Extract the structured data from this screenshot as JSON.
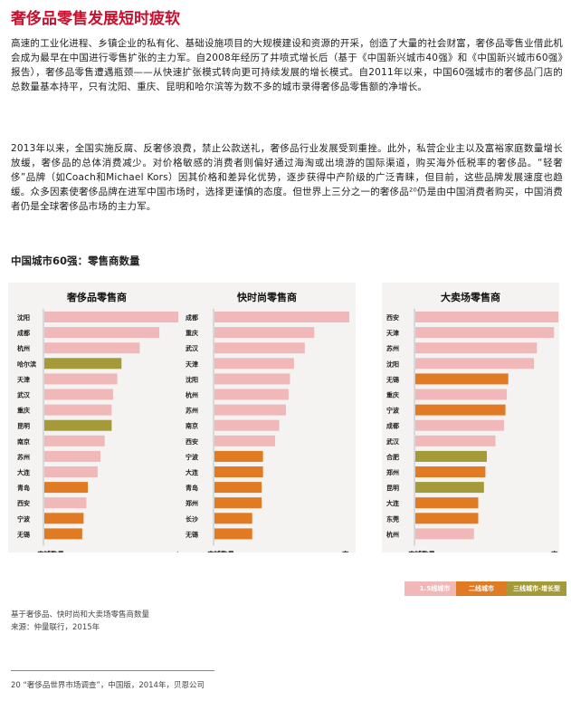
{
  "title": "奢侈品零售发展短时疲软",
  "paragraphs": [
    "高速的工业化进程、乡镇企业的私有化、基础设施项目的大规模建设和资源的开采，创造了大量的社会财富，奢侈品零售业借此机会成为最早在中国进行零售扩张的主力军。自2008年经历了井喷式增长后（基于《中国新兴城市40强》和《中国新兴城市60强》报告），奢侈品零售遭遇瓶颈——从快速扩张模式转向更可持续发展的增长模式。自2011年以来，中国60强城市的奢侈品门店的总数量基本持平，只有沈阳、重庆、昆明和哈尔滨等为数不多的城市录得奢侈品零售额的净增长。",
    "2013年以来，全国实施反腐、反奢侈浪费，禁止公款送礼，奢侈品行业发展受到重挫。此外，私营企业主以及富裕家庭数量增长放缓，奢侈品的总体消费减少。对价格敏感的消费者则偏好通过海淘或出境游的国际渠道，购买海外低税率的奢侈品。“轻奢侈”品牌（如Coach和Michael Kors）因其价格和差异化优势，逐步获得中产阶级的广泛青睐，但目前，这些品牌发展速度也趋缓。众多因素使奢侈品牌在进军中国市场时，选择更谨慎的态度。但世界上三分之一的奢侈品²⁰仍是由中国消费者购买，中国消费者仍是全球奢侈品市场的主力军。"
  ],
  "chart_heading": "中国城市60强：零售商数量",
  "colors": {
    "tier1": "#f0b8b8",
    "tier2": "#e07b24",
    "tier3": "#a59a3a",
    "title": "#c8102e"
  },
  "chart_data": [
    {
      "type": "bar",
      "title": "奢侈品零售商",
      "xlabel": "店铺数量",
      "xhigh_label": "高",
      "categories": [
        "沈阳",
        "成都",
        "杭州",
        "哈尔滨",
        "天津",
        "武汉",
        "重庆",
        "昆明",
        "南京",
        "苏州",
        "大连",
        "青岛",
        "西安",
        "宁波",
        "无锡"
      ],
      "values": [
        100,
        82,
        68,
        55,
        52,
        49,
        48,
        48,
        43,
        40,
        38,
        31,
        30,
        28,
        27
      ],
      "tiers": [
        "tier1",
        "tier1",
        "tier1",
        "tier3",
        "tier1",
        "tier1",
        "tier1",
        "tier3",
        "tier1",
        "tier1",
        "tier1",
        "tier2",
        "tier1",
        "tier2",
        "tier2"
      ]
    },
    {
      "type": "bar",
      "title": "快时尚零售商",
      "xlabel": "店铺数量",
      "xhigh_label": "高",
      "categories": [
        "成都",
        "重庆",
        "武汉",
        "天津",
        "沈阳",
        "杭州",
        "苏州",
        "南京",
        "西安",
        "宁波",
        "大连",
        "青岛",
        "郑州",
        "长沙",
        "无锡"
      ],
      "values": [
        100,
        74,
        67,
        59,
        56,
        55,
        53,
        48,
        45,
        36,
        36,
        35,
        35,
        28,
        28
      ],
      "tiers": [
        "tier1",
        "tier1",
        "tier1",
        "tier1",
        "tier1",
        "tier1",
        "tier1",
        "tier1",
        "tier1",
        "tier2",
        "tier2",
        "tier2",
        "tier2",
        "tier2",
        "tier2"
      ]
    },
    {
      "type": "bar",
      "title": "大卖场零售商",
      "xlabel": "店铺数量",
      "xhigh_label": "高",
      "categories": [
        "西安",
        "天津",
        "苏州",
        "沈阳",
        "无锡",
        "重庆",
        "宁波",
        "成都",
        "武汉",
        "合肥",
        "郑州",
        "昆明",
        "大连",
        "东莞",
        "杭州"
      ],
      "values": [
        100,
        97,
        85,
        83,
        65,
        64,
        63,
        62,
        56,
        50,
        49,
        48,
        44,
        44,
        41
      ],
      "tiers": [
        "tier1",
        "tier1",
        "tier1",
        "tier1",
        "tier2",
        "tier1",
        "tier2",
        "tier1",
        "tier1",
        "tier3",
        "tier2",
        "tier3",
        "tier2",
        "tier2",
        "tier1"
      ]
    }
  ],
  "legend": [
    {
      "label": "1.5线城市",
      "tier": "tier1"
    },
    {
      "label": "二线城市",
      "tier": "tier2"
    },
    {
      "label": "三线城市-增长型",
      "tier": "tier3"
    }
  ],
  "notes": {
    "basis": "基于奢侈品、快时尚和大卖场零售商数量",
    "source": "来源：仲量联行，2015年",
    "footnote": "20 “奢侈品世界市场调查”，中国版，2014年，贝恩公司"
  }
}
